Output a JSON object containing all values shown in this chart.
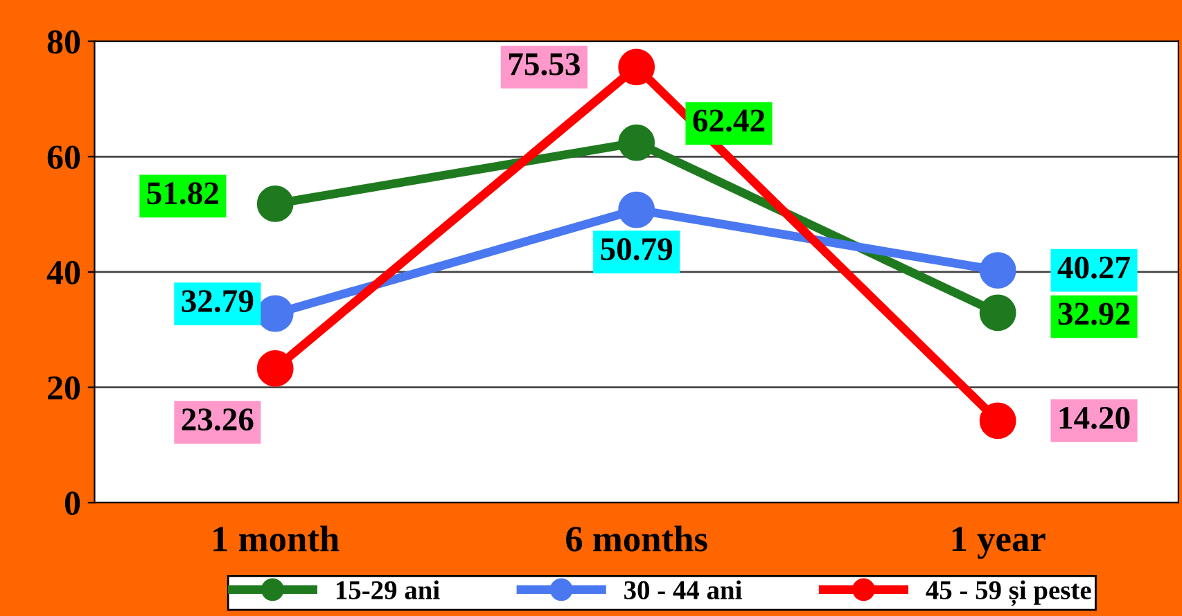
{
  "chart_data": {
    "type": "line",
    "categories": [
      "1 month",
      "6 months",
      "1 year"
    ],
    "series": [
      {
        "name": "15-29 ani",
        "color": "#1f7a1f",
        "values": [
          51.82,
          62.42,
          32.92
        ],
        "value_labels": [
          "51.82",
          "62.42",
          "32.92"
        ]
      },
      {
        "name": "30 - 44 ani",
        "color": "#4a78f0",
        "values": [
          32.79,
          50.79,
          40.27
        ],
        "value_labels": [
          "32.79",
          "50.79",
          "40.27"
        ]
      },
      {
        "name": "45 - 59 și peste",
        "color": "#ff0000",
        "values": [
          23.26,
          75.53,
          14.2
        ],
        "value_labels": [
          "23.26",
          "75.53",
          "14.20"
        ]
      }
    ],
    "ylim": [
      0,
      80
    ],
    "yticks": [
      0,
      20,
      40,
      60,
      80
    ],
    "grid": "y",
    "legend": "bottom",
    "marker": "circle",
    "line_style": "solid"
  }
}
